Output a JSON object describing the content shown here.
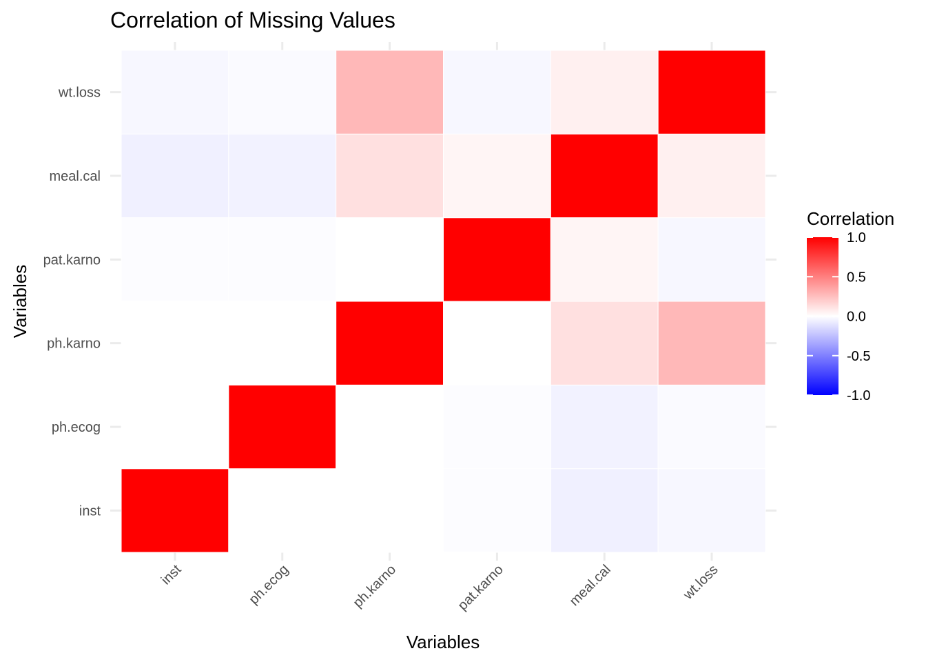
{
  "chart_data": {
    "type": "heatmap",
    "title": "Correlation of Missing Values",
    "xlabel": "Variables",
    "ylabel": "Variables",
    "x": [
      "inst",
      "ph.ecog",
      "ph.karno",
      "pat.karno",
      "meal.cal",
      "wt.loss"
    ],
    "y": [
      "inst",
      "ph.ecog",
      "ph.karno",
      "pat.karno",
      "meal.cal",
      "wt.loss"
    ],
    "values": [
      [
        1.0,
        0.0,
        0.0,
        -0.01,
        -0.06,
        -0.03
      ],
      [
        0.0,
        1.0,
        0.0,
        -0.01,
        -0.05,
        -0.02
      ],
      [
        0.0,
        0.0,
        1.0,
        0.0,
        0.12,
        0.28
      ],
      [
        -0.01,
        -0.01,
        0.0,
        1.0,
        0.04,
        -0.03
      ],
      [
        -0.06,
        -0.05,
        0.12,
        0.04,
        1.0,
        0.06
      ],
      [
        -0.03,
        -0.02,
        0.28,
        -0.03,
        0.06,
        1.0
      ]
    ],
    "legend": {
      "title": "Correlation",
      "position": "right",
      "range": [
        -1.0,
        1.0
      ],
      "ticks": [
        1.0,
        0.5,
        0.0,
        -0.5,
        -1.0
      ],
      "tick_labels": [
        "1.0",
        "0.5",
        "0.0",
        "-0.5",
        "-1.0"
      ],
      "low_color": "#0000ff",
      "mid_color": "#ffffff",
      "high_color": "#ff0000"
    },
    "grid": true
  }
}
